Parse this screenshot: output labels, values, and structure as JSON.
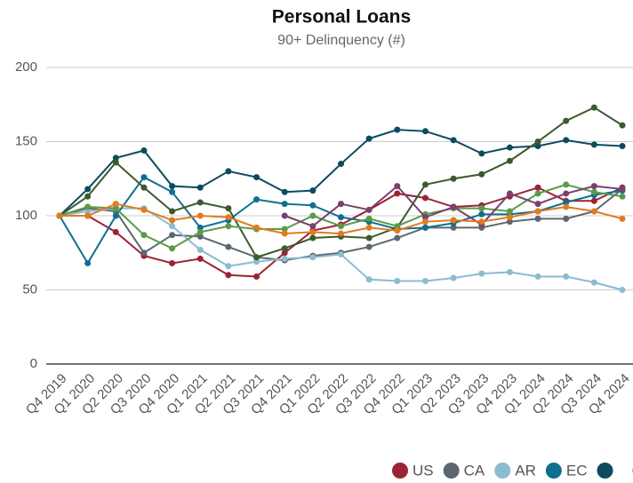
{
  "chart_data": {
    "type": "line",
    "title": "Personal Loans",
    "subtitle": "90+ Delinquency (#)",
    "categories": [
      "Q4 2019",
      "Q1 2020",
      "Q2 2020",
      "Q3 2020",
      "Q4 2020",
      "Q1 2021",
      "Q2 2021",
      "Q3 2021",
      "Q4 2021",
      "Q1 2022",
      "Q2 2022",
      "Q3 2022",
      "Q4 2022",
      "Q1 2023",
      "Q2 2023",
      "Q3 2023",
      "Q4 2023",
      "Q1 2024",
      "Q2 2024",
      "Q3 2024",
      "Q4 2024"
    ],
    "ylim": [
      0,
      200
    ],
    "yticks": [
      0,
      50,
      100,
      150,
      200
    ],
    "grid": true,
    "legend": "bottom",
    "series": [
      {
        "name": "US",
        "color": "#9b2335",
        "values": [
          100,
          100,
          89,
          73,
          68,
          71,
          60,
          59,
          75,
          90,
          94,
          104,
          115,
          112,
          106,
          107,
          113,
          119,
          110,
          110,
          119
        ]
      },
      {
        "name": "CA",
        "color": "#5d6770",
        "values": [
          100,
          105,
          103,
          75,
          87,
          86,
          79,
          72,
          70,
          73,
          75,
          79,
          85,
          92,
          92,
          92,
          96,
          98,
          98,
          103,
          118
        ]
      },
      {
        "name": "AR",
        "color": "#8bbcd0",
        "values": [
          100,
          103,
          105,
          105,
          93,
          77,
          66,
          69,
          71,
          72,
          74,
          57,
          56,
          56,
          58,
          61,
          62,
          59,
          59,
          55,
          50
        ]
      },
      {
        "name": "EC",
        "color": "#0f6f8f",
        "values": [
          100,
          68,
          100,
          126,
          116,
          92,
          97,
          111,
          108,
          107,
          99,
          96,
          91,
          92,
          95,
          101,
          101,
          103,
          109,
          114,
          117
        ]
      },
      {
        "color": "#0d4a5e",
        "values": [
          100,
          118,
          139,
          144,
          120,
          119,
          130,
          126,
          116,
          117,
          135,
          152,
          158,
          157,
          151,
          142,
          146,
          147,
          151,
          148,
          147
        ]
      },
      {
        "color": "#3b5a2e",
        "values": [
          100,
          113,
          136,
          119,
          103,
          109,
          105,
          72,
          78,
          85,
          86,
          85,
          92,
          121,
          125,
          128,
          137,
          150,
          164,
          173,
          161
        ]
      },
      {
        "color": "#5a9a4a",
        "values": [
          100,
          106,
          105,
          87,
          78,
          89,
          93,
          91,
          91,
          100,
          93,
          98,
          93,
          101,
          105,
          105,
          103,
          115,
          121,
          116,
          113
        ]
      },
      {
        "color": "#7b3f6e",
        "values": [
          null,
          null,
          null,
          null,
          null,
          null,
          null,
          null,
          100,
          93,
          108,
          104,
          120,
          99,
          106,
          94,
          115,
          108,
          115,
          120,
          118
        ]
      },
      {
        "color": "#e07b20",
        "values": [
          100,
          100,
          108,
          104,
          97,
          100,
          99,
          92,
          88,
          89,
          88,
          92,
          90,
          96,
          97,
          96,
          99,
          103,
          106,
          103,
          98
        ]
      }
    ]
  }
}
